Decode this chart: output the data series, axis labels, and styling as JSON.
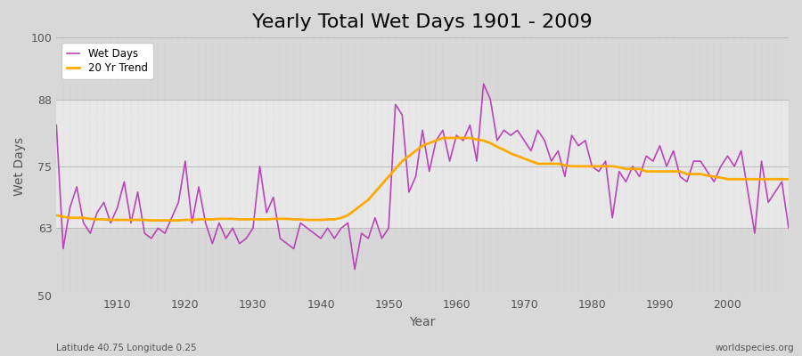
{
  "title": "Yearly Total Wet Days 1901 - 2009",
  "xlabel": "Year",
  "ylabel": "Wet Days",
  "subtitle": "Latitude 40.75 Longitude 0.25",
  "watermark": "worldspecies.org",
  "ylim": [
    50,
    100
  ],
  "yticks": [
    50,
    63,
    75,
    88,
    100
  ],
  "line_color": "#bb44bb",
  "trend_color": "#ffaa00",
  "bg_outer": "#d8d8d8",
  "bg_inner": "#e8e8e8",
  "legend_items": [
    "Wet Days",
    "20 Yr Trend"
  ],
  "years": [
    1901,
    1902,
    1903,
    1904,
    1905,
    1906,
    1907,
    1908,
    1909,
    1910,
    1911,
    1912,
    1913,
    1914,
    1915,
    1916,
    1917,
    1918,
    1919,
    1920,
    1921,
    1922,
    1923,
    1924,
    1925,
    1926,
    1927,
    1928,
    1929,
    1930,
    1931,
    1932,
    1933,
    1934,
    1935,
    1936,
    1937,
    1938,
    1939,
    1940,
    1941,
    1942,
    1943,
    1944,
    1945,
    1946,
    1947,
    1948,
    1949,
    1950,
    1951,
    1952,
    1953,
    1954,
    1955,
    1956,
    1957,
    1958,
    1959,
    1960,
    1961,
    1962,
    1963,
    1964,
    1965,
    1966,
    1967,
    1968,
    1969,
    1970,
    1971,
    1972,
    1973,
    1974,
    1975,
    1976,
    1977,
    1978,
    1979,
    1980,
    1981,
    1982,
    1983,
    1984,
    1985,
    1986,
    1987,
    1988,
    1989,
    1990,
    1991,
    1992,
    1993,
    1994,
    1995,
    1996,
    1997,
    1998,
    1999,
    2000,
    2001,
    2002,
    2003,
    2004,
    2005,
    2006,
    2007,
    2008,
    2009
  ],
  "wet_days": [
    83,
    59,
    67,
    71,
    64,
    62,
    66,
    68,
    64,
    67,
    72,
    64,
    70,
    62,
    61,
    63,
    62,
    65,
    68,
    76,
    64,
    71,
    64,
    60,
    64,
    61,
    63,
    60,
    61,
    63,
    75,
    66,
    69,
    61,
    60,
    59,
    64,
    63,
    62,
    61,
    63,
    61,
    63,
    64,
    55,
    62,
    61,
    65,
    61,
    63,
    87,
    85,
    70,
    73,
    82,
    74,
    80,
    82,
    76,
    81,
    80,
    83,
    76,
    91,
    88,
    80,
    82,
    81,
    82,
    80,
    78,
    82,
    80,
    76,
    78,
    73,
    81,
    79,
    80,
    75,
    74,
    76,
    65,
    74,
    72,
    75,
    73,
    77,
    76,
    79,
    75,
    78,
    73,
    72,
    76,
    76,
    74,
    72,
    75,
    77,
    75,
    78,
    70,
    62,
    76,
    68,
    70,
    72,
    63
  ],
  "trend": [
    65.5,
    65.2,
    65.0,
    65.0,
    65.0,
    64.8,
    64.7,
    64.7,
    64.6,
    64.6,
    64.6,
    64.6,
    64.6,
    64.6,
    64.5,
    64.5,
    64.5,
    64.5,
    64.5,
    64.6,
    64.6,
    64.7,
    64.7,
    64.7,
    64.8,
    64.8,
    64.8,
    64.7,
    64.7,
    64.7,
    64.7,
    64.7,
    64.8,
    64.8,
    64.8,
    64.7,
    64.7,
    64.6,
    64.6,
    64.6,
    64.7,
    64.7,
    65.0,
    65.5,
    66.5,
    67.5,
    68.5,
    70.0,
    71.5,
    73.0,
    74.5,
    76.0,
    77.0,
    78.0,
    79.0,
    79.5,
    80.0,
    80.5,
    80.5,
    80.5,
    80.5,
    80.5,
    80.2,
    80.0,
    79.5,
    78.8,
    78.2,
    77.5,
    77.0,
    76.5,
    76.0,
    75.5,
    75.5,
    75.5,
    75.5,
    75.2,
    75.0,
    75.0,
    75.0,
    75.0,
    75.0,
    75.0,
    75.0,
    74.8,
    74.5,
    74.5,
    74.5,
    74.0,
    74.0,
    74.0,
    74.0,
    74.0,
    74.0,
    73.5,
    73.5,
    73.5,
    73.2,
    73.0,
    72.8,
    72.5,
    72.5,
    72.5,
    72.5,
    72.5,
    72.5,
    72.5,
    72.5,
    72.5,
    72.5
  ],
  "grid_color": "#bbbbbb",
  "tick_color": "#555555",
  "title_fontsize": 16,
  "label_fontsize": 10,
  "tick_fontsize": 9
}
